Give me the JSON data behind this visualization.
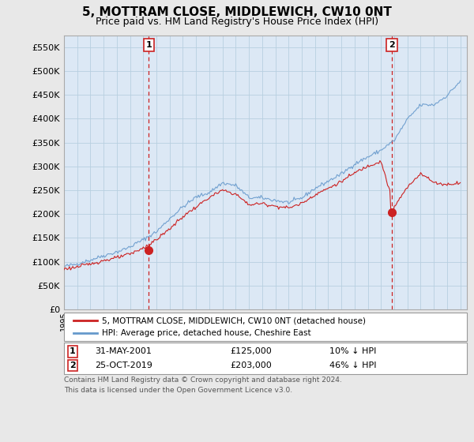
{
  "title": "5, MOTTRAM CLOSE, MIDDLEWICH, CW10 0NT",
  "subtitle": "Price paid vs. HM Land Registry's House Price Index (HPI)",
  "title_fontsize": 11,
  "subtitle_fontsize": 9,
  "ylim": [
    0,
    575000
  ],
  "yticks": [
    0,
    50000,
    100000,
    150000,
    200000,
    250000,
    300000,
    350000,
    400000,
    450000,
    500000,
    550000
  ],
  "ytick_labels": [
    "£0",
    "£50K",
    "£100K",
    "£150K",
    "£200K",
    "£250K",
    "£300K",
    "£350K",
    "£400K",
    "£450K",
    "£500K",
    "£550K"
  ],
  "background_color": "#e8e8e8",
  "plot_bg_color": "#dce8f5",
  "grid_color": "#b8cfe0",
  "sale1_date": 2001.42,
  "sale1_price": 125000,
  "sale2_date": 2019.82,
  "sale2_price": 203000,
  "hpi_color": "#6699cc",
  "sale_color": "#cc2222",
  "dashed_line_color": "#cc2222",
  "legend_label_sale": "5, MOTTRAM CLOSE, MIDDLEWICH, CW10 0NT (detached house)",
  "legend_label_hpi": "HPI: Average price, detached house, Cheshire East",
  "footer": "Contains HM Land Registry data © Crown copyright and database right 2024.\nThis data is licensed under the Open Government Licence v3.0.",
  "xmin": 1995,
  "xmax": 2025.5
}
